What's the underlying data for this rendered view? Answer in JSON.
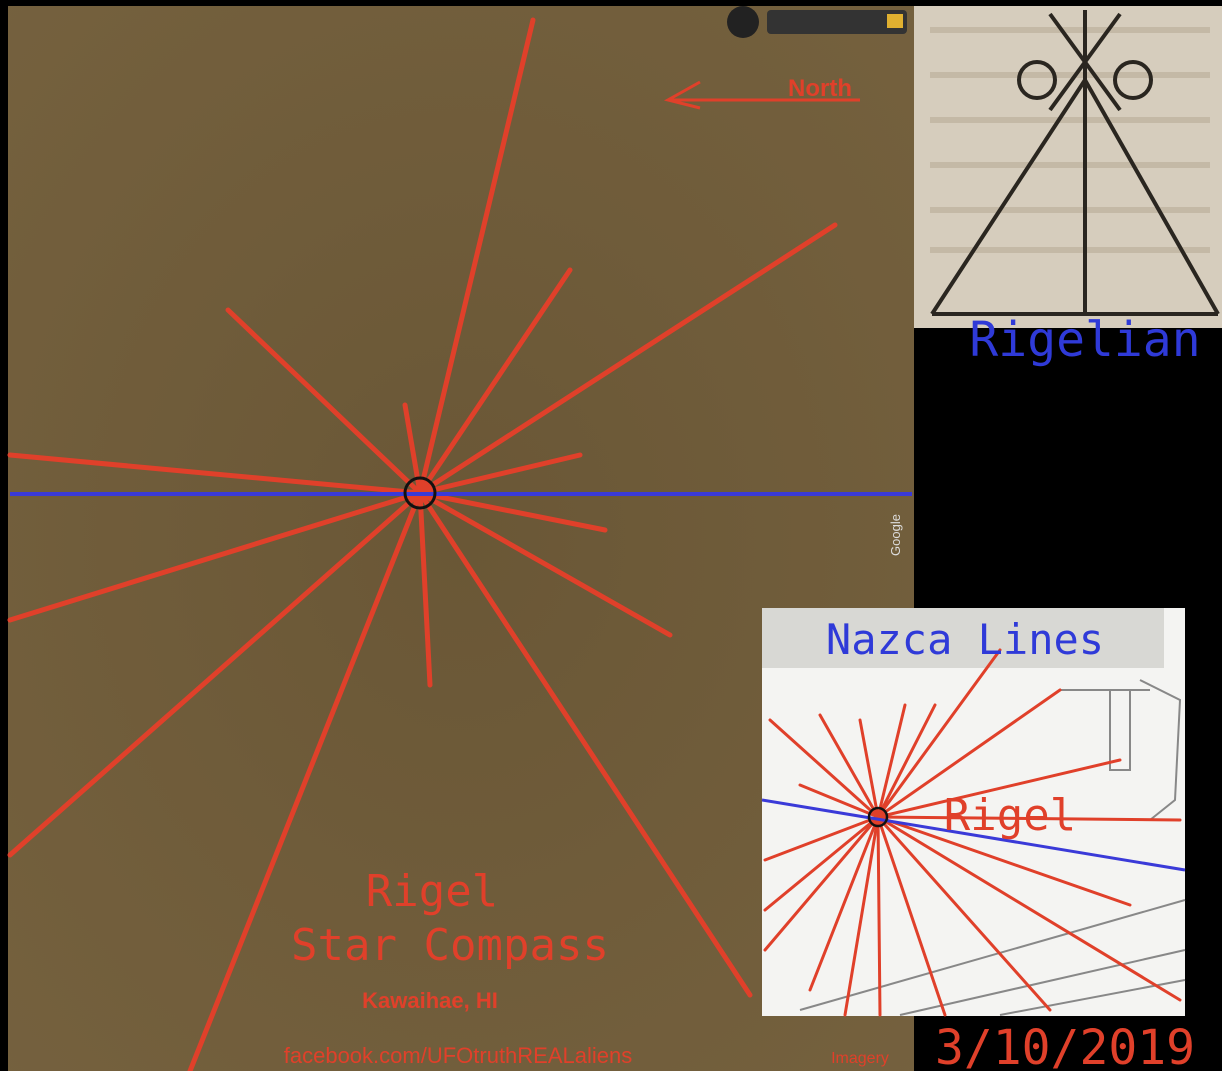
{
  "map": {
    "north_label": "North",
    "title_line1": "Rigel",
    "title_line2": "Star Compass",
    "location": "Kawaihae, HI",
    "credit": "facebook.com/UFOtruthREALaliens",
    "watermark": "Google",
    "imagery": "Imagery"
  },
  "symbol_panel": {
    "caption": "Rigelian"
  },
  "inset": {
    "title": "Nazca Lines",
    "star_label": "Rigel"
  },
  "date": "3/10/2019"
}
